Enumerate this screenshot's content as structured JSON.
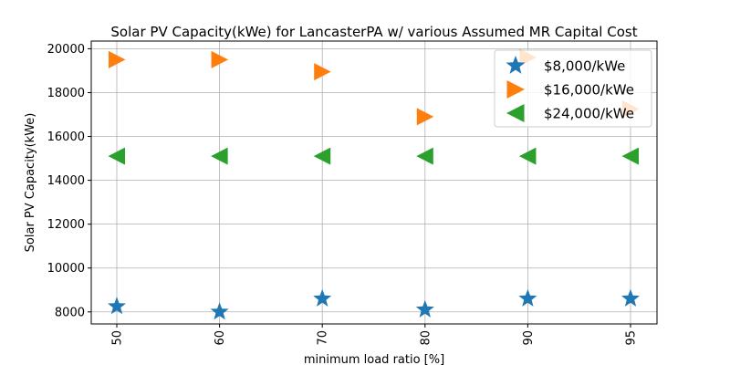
{
  "chart_data": {
    "type": "scatter",
    "title": "Solar PV Capacity(kWe) for LancasterPA w/ various Assumed MR Capital Cost",
    "xlabel": "minimum load ratio [%]",
    "ylabel": "Solar PV Capacity(kWe)",
    "categories": [
      "50",
      "60",
      "70",
      "80",
      "90",
      "95"
    ],
    "ylim": [
      7450,
      20350
    ],
    "yticks": [
      8000,
      10000,
      12000,
      14000,
      16000,
      18000,
      20000
    ],
    "grid": true,
    "legend_position": "top-right",
    "series": [
      {
        "name": "$8,000/kWe",
        "marker": "star",
        "color": "#1f77b4",
        "values": [
          8250,
          8000,
          8600,
          8100,
          8600,
          8600
        ]
      },
      {
        "name": "$16,000/kWe",
        "marker": "triangle-right",
        "color": "#ff7f0e",
        "values": [
          19500,
          19500,
          18950,
          16900,
          19600,
          17250
        ]
      },
      {
        "name": "$24,000/kWe",
        "marker": "triangle-left",
        "color": "#2ca02c",
        "values": [
          15100,
          15100,
          15100,
          15100,
          15100,
          15100
        ]
      }
    ]
  }
}
